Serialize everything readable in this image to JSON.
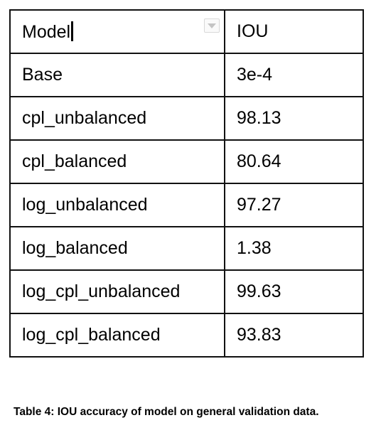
{
  "table": {
    "headers": [
      "Model",
      "IOU"
    ],
    "rows": [
      [
        "Base",
        "3e-4"
      ],
      [
        "cpl_unbalanced",
        "98.13"
      ],
      [
        "cpl_balanced",
        "80.64"
      ],
      [
        "log_unbalanced",
        "97.27"
      ],
      [
        "log_balanced",
        "1.38"
      ],
      [
        "log_cpl_unbalanced",
        "99.63"
      ],
      [
        "log_cpl_balanced",
        "93.83"
      ]
    ]
  },
  "caption": "Table 4: IOU accuracy of model on general validation data.",
  "icons": {
    "header_filter": "dropdown-filter-icon"
  },
  "colors": {
    "border": "#111111",
    "background": "#ffffff",
    "text": "#000000"
  }
}
